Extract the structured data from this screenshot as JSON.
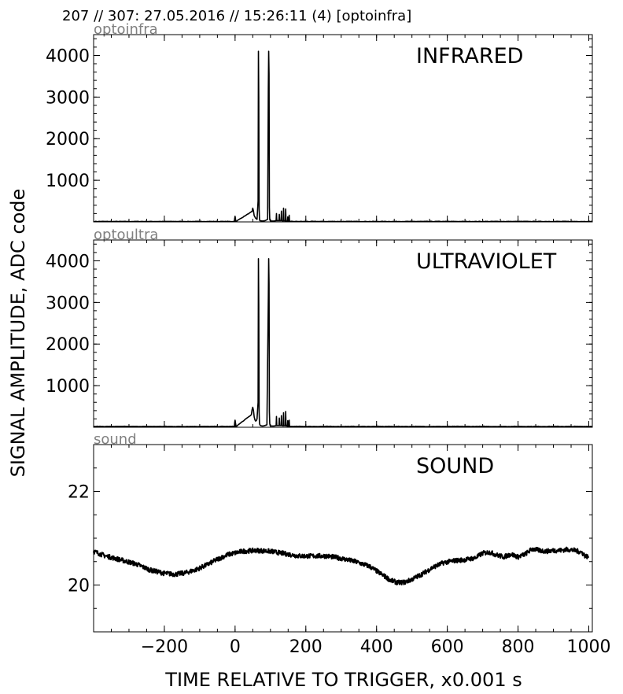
{
  "header": {
    "title": "207 // 307:   27.05.2016 // 15:26:11 (4)  [optoinfra]"
  },
  "chart_data": [
    {
      "type": "line",
      "source_label": "optoinfra",
      "panel_label": "INFRARED",
      "xlim": [
        -400,
        1010
      ],
      "ylim": [
        0,
        4500
      ],
      "yticks": [
        1000,
        2000,
        3000,
        4000
      ],
      "ytick_labels": [
        "1000",
        "2000",
        "3000",
        "4000"
      ],
      "baseline": 10,
      "x": [
        -400,
        -2,
        -1,
        0,
        1,
        2,
        48,
        50,
        52,
        54,
        58,
        62,
        65,
        66,
        67,
        68,
        69,
        70,
        74,
        78,
        85,
        92,
        94,
        95,
        96,
        97,
        98,
        99,
        100,
        104,
        110,
        116,
        117,
        118,
        124,
        125,
        126,
        130,
        131,
        132,
        136,
        137,
        138,
        142,
        143,
        144,
        148,
        149,
        150,
        152,
        153,
        154,
        156,
        1010
      ],
      "y": [
        10,
        10,
        90,
        130,
        80,
        10,
        250,
        330,
        260,
        150,
        90,
        60,
        500,
        4100,
        3000,
        300,
        60,
        30,
        25,
        20,
        30,
        60,
        3200,
        4100,
        3550,
        350,
        60,
        35,
        25,
        20,
        20,
        30,
        200,
        30,
        30,
        180,
        30,
        30,
        260,
        30,
        20,
        330,
        30,
        20,
        310,
        20,
        15,
        120,
        15,
        20,
        160,
        15,
        10,
        10
      ]
    },
    {
      "type": "line",
      "source_label": "optoultra",
      "panel_label": "ULTRAVIOLET",
      "xlim": [
        -400,
        1010
      ],
      "ylim": [
        0,
        4500
      ],
      "yticks": [
        1000,
        2000,
        3000,
        4000
      ],
      "ytick_labels": [
        "1000",
        "2000",
        "3000",
        "4000"
      ],
      "baseline": 20,
      "x": [
        -400,
        -2,
        -1,
        0,
        1,
        2,
        3,
        46,
        48,
        50,
        52,
        54,
        56,
        58,
        60,
        62,
        65,
        66,
        67,
        68,
        69,
        70,
        72,
        76,
        82,
        90,
        94,
        95,
        96,
        97,
        98,
        99,
        100,
        104,
        110,
        116,
        117,
        118,
        124,
        125,
        126,
        130,
        131,
        132,
        136,
        137,
        138,
        142,
        143,
        144,
        146,
        148,
        149,
        150,
        152,
        153,
        154,
        156,
        1010
      ],
      "y": [
        20,
        20,
        120,
        170,
        110,
        60,
        20,
        300,
        420,
        480,
        400,
        250,
        180,
        150,
        160,
        200,
        600,
        4050,
        2950,
        350,
        100,
        60,
        40,
        30,
        35,
        60,
        3100,
        4050,
        3450,
        380,
        90,
        45,
        35,
        30,
        30,
        40,
        260,
        40,
        40,
        220,
        40,
        40,
        280,
        40,
        30,
        350,
        40,
        30,
        380,
        60,
        30,
        20,
        160,
        20,
        25,
        170,
        20,
        20,
        20
      ]
    },
    {
      "type": "line",
      "source_label": "sound",
      "panel_label": "SOUND",
      "xlim": [
        -400,
        1010
      ],
      "ylim": [
        19,
        23
      ],
      "yticks": [
        20,
        22
      ],
      "ytick_labels": [
        "20",
        "22"
      ],
      "noise": 0.05,
      "x": [
        -400,
        -370,
        -330,
        -280,
        -240,
        -200,
        -170,
        -140,
        -110,
        -80,
        -50,
        -20,
        20,
        60,
        100,
        140,
        180,
        220,
        260,
        300,
        340,
        380,
        410,
        440,
        460,
        480,
        500,
        530,
        560,
        590,
        620,
        650,
        680,
        700,
        720,
        740,
        760,
        780,
        800,
        820,
        840,
        860,
        880,
        900,
        920,
        940,
        960,
        980,
        990,
        1000
      ],
      "y": [
        20.72,
        20.63,
        20.55,
        20.45,
        20.32,
        20.25,
        20.23,
        20.26,
        20.33,
        20.43,
        20.55,
        20.65,
        20.72,
        20.74,
        20.72,
        20.67,
        20.62,
        20.62,
        20.62,
        20.57,
        20.5,
        20.4,
        20.25,
        20.1,
        20.05,
        20.06,
        20.12,
        20.24,
        20.38,
        20.48,
        20.52,
        20.54,
        20.58,
        20.68,
        20.7,
        20.64,
        20.6,
        20.66,
        20.6,
        20.66,
        20.77,
        20.74,
        20.72,
        20.74,
        20.74,
        20.76,
        20.74,
        20.7,
        20.62,
        20.6
      ]
    }
  ],
  "axes": {
    "xticks": [
      -200,
      0,
      200,
      400,
      600,
      800,
      1000
    ],
    "xtick_labels": [
      "−200",
      "0",
      "200",
      "400",
      "600",
      "800",
      "1000"
    ],
    "xlabel": "TIME RELATIVE TO TRIGGER,   x0.001 s",
    "ylabel": "SIGNAL AMPLITUDE,  ADC code"
  }
}
